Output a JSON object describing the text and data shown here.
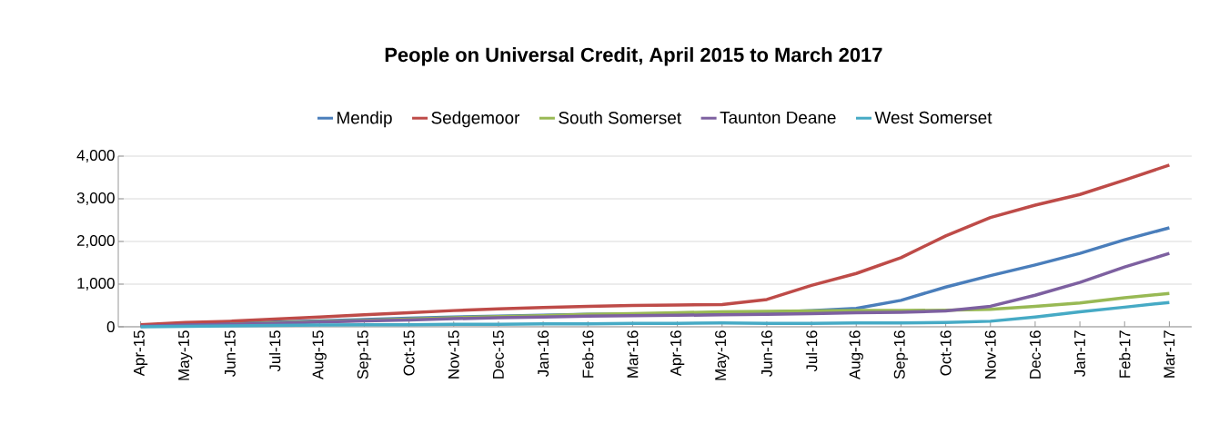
{
  "chart_data": {
    "type": "line",
    "title": "People on Universal Credit, April 2015 to March 2017",
    "categories": [
      "Apr-15",
      "May-15",
      "Jun-15",
      "Jul-15",
      "Aug-15",
      "Sep-15",
      "Oct-15",
      "Nov-15",
      "Dec-15",
      "Jan-16",
      "Feb-16",
      "Mar-16",
      "Apr-16",
      "May-16",
      "Jun-16",
      "Jul-16",
      "Aug-16",
      "Sep-16",
      "Oct-16",
      "Nov-16",
      "Dec-16",
      "Jan-17",
      "Feb-17",
      "Mar-17"
    ],
    "series": [
      {
        "name": "Mendip",
        "color": "#4a7ebb",
        "values": [
          20,
          50,
          80,
          110,
          140,
          170,
          200,
          230,
          250,
          270,
          290,
          300,
          310,
          320,
          340,
          380,
          430,
          620,
          930,
          1200,
          1450,
          1720,
          2040,
          2320
        ]
      },
      {
        "name": "Sedgemoor",
        "color": "#be4b48",
        "values": [
          50,
          100,
          130,
          180,
          230,
          280,
          330,
          380,
          420,
          450,
          480,
          500,
          510,
          520,
          640,
          970,
          1250,
          1620,
          2130,
          2560,
          2850,
          3100,
          3440,
          3790
        ]
      },
      {
        "name": "South Somerset",
        "color": "#98b954",
        "values": [
          null,
          null,
          60,
          90,
          120,
          150,
          180,
          210,
          240,
          260,
          290,
          310,
          330,
          350,
          360,
          370,
          380,
          380,
          390,
          410,
          480,
          560,
          680,
          780
        ]
      },
      {
        "name": "Taunton Deane",
        "color": "#7d60a0",
        "values": [
          10,
          40,
          60,
          80,
          110,
          140,
          160,
          190,
          210,
          230,
          250,
          260,
          270,
          280,
          290,
          310,
          330,
          340,
          370,
          480,
          740,
          1040,
          1400,
          1720
        ]
      },
      {
        "name": "West Somerset",
        "color": "#46aac5",
        "values": [
          0,
          10,
          20,
          30,
          40,
          50,
          50,
          60,
          60,
          70,
          70,
          80,
          80,
          90,
          80,
          80,
          90,
          90,
          100,
          130,
          230,
          350,
          460,
          570
        ]
      }
    ],
    "ylim": [
      0,
      4000
    ],
    "yticks": [
      {
        "value": 0,
        "label": "0"
      },
      {
        "value": 1000,
        "label": "1,000"
      },
      {
        "value": 2000,
        "label": "2,000"
      },
      {
        "value": 3000,
        "label": "3,000"
      },
      {
        "value": 4000,
        "label": "4,000"
      }
    ],
    "grid": "y",
    "legend": "top",
    "marker": "none",
    "line_style": "solid"
  }
}
